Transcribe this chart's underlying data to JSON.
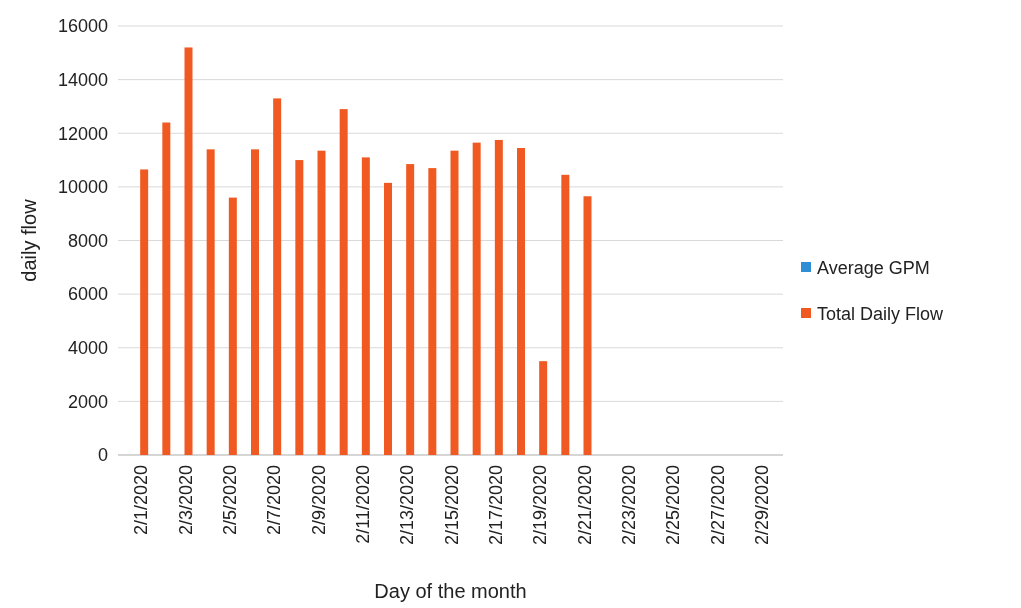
{
  "chart_data": {
    "type": "bar",
    "xlabel": "Day of the month",
    "ylabel": "daily flow",
    "categories": [
      "2/1/2020",
      null,
      "2/3/2020",
      null,
      "2/5/2020",
      null,
      "2/7/2020",
      null,
      "2/9/2020",
      null,
      "2/11/2020",
      null,
      "2/13/2020",
      null,
      "2/15/2020",
      null,
      "2/17/2020",
      null,
      "2/19/2020",
      null,
      "2/21/2020",
      null,
      "2/23/2020",
      null,
      "2/25/2020",
      null,
      "2/27/2020",
      null,
      "2/29/2020"
    ],
    "series": [
      {
        "name": "Average GPM",
        "color": "#2e8fd6",
        "values": [
          null,
          null,
          null,
          null,
          null,
          null,
          null,
          null,
          null,
          null,
          null,
          null,
          null,
          null,
          null,
          null,
          null,
          null,
          null,
          null,
          null,
          null,
          null,
          null,
          null,
          null,
          null,
          null,
          null
        ]
      },
      {
        "name": "Total Daily Flow",
        "color": "#f05a22",
        "values": [
          10650,
          12400,
          15200,
          11400,
          9600,
          11400,
          13300,
          11000,
          11350,
          12900,
          11100,
          10150,
          10850,
          10700,
          11350,
          11650,
          11750,
          11450,
          3500,
          10450,
          9650,
          null,
          null,
          null,
          null,
          null,
          null,
          null,
          null
        ]
      }
    ],
    "ylim": [
      0,
      16000
    ],
    "yticks": [
      0,
      2000,
      4000,
      6000,
      8000,
      10000,
      12000,
      14000,
      16000
    ],
    "grid": "y",
    "legend": "right"
  }
}
